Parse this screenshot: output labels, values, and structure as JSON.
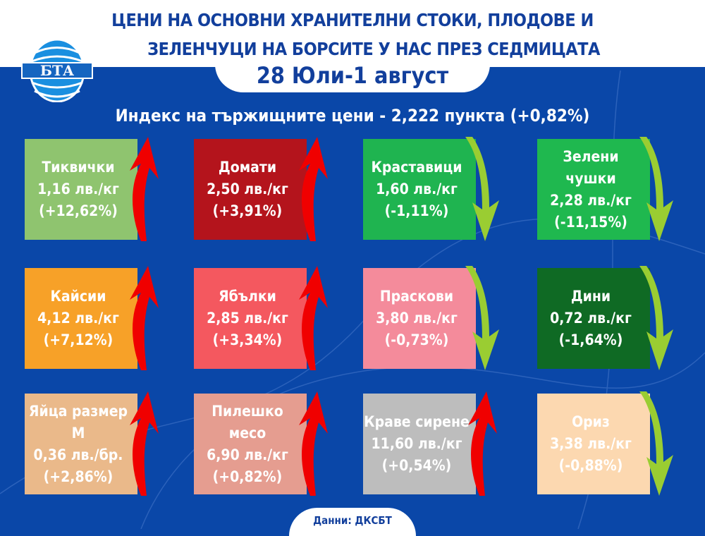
{
  "header": {
    "title_line1": "ЦЕНИ НА ОСНОВНИ ХРАНИТЕЛНИ СТОКИ, ПЛОДОВЕ И",
    "title_line2": "ЗЕЛЕНЧУЦИ НА БОРСИТЕ У НАС ПРЕЗ СЕДМИЦАТА",
    "date": "28 Юли-1 август",
    "logo_text": "БТА"
  },
  "index": "Индекс на тържищните цени - 2,222 пункта (+0,82%)",
  "colors": {
    "background": "#0a47a8",
    "up": "#f00000",
    "down": "#9acd32"
  },
  "cards": [
    {
      "name": "Тиквички",
      "price": "1,16 лв./кг",
      "change": "(+12,62%)",
      "trend": "up",
      "color": "#8fc46f",
      "icon": "zucchini-icon"
    },
    {
      "name": "Домати",
      "price": "2,50 лв./кг",
      "change": "(+3,91%)",
      "trend": "up",
      "color": "#b4141c",
      "icon": "tomato-icon"
    },
    {
      "name": "Краставици",
      "price": "1,60 лв./кг",
      "change": "(-1,11%)",
      "trend": "down",
      "color": "#1fb450",
      "icon": "cucumber-icon"
    },
    {
      "name": "Зелени чушки",
      "price": "2,28 лв./кг",
      "change": "(-11,15%)",
      "trend": "down",
      "color": "#1fb84f",
      "icon": "pepper-icon"
    },
    {
      "name": "Кайсии",
      "price": "4,12 лв./кг",
      "change": "(+7,12%)",
      "trend": "up",
      "color": "#f7a128",
      "icon": "apricot-icon"
    },
    {
      "name": "Ябълки",
      "price": "2,85 лв./кг",
      "change": "(+3,34%)",
      "trend": "up",
      "color": "#f4585f",
      "icon": "apple-icon"
    },
    {
      "name": "Праскови",
      "price": "3,80 лв./кг",
      "change": "(-0,73%)",
      "trend": "down",
      "color": "#f48b9b",
      "icon": "peach-icon"
    },
    {
      "name": "Дини",
      "price": "0,72 лв./кг",
      "change": "(-1,64%)",
      "trend": "down",
      "color": "#0f6a24",
      "icon": "watermelon-icon"
    },
    {
      "name": "Яйца размер М",
      "price": "0,36 лв./бр.",
      "change": "(+2,86%)",
      "trend": "up",
      "color": "#eab98a",
      "icon": "egg-icon"
    },
    {
      "name": "Пилешко месо",
      "price": "6,90 лв./кг",
      "change": "(+0,82%)",
      "trend": "up",
      "color": "#e59d90",
      "icon": "chicken-icon"
    },
    {
      "name": "Краве сирене",
      "price": "11,60 лв./кг",
      "change": "(+0,54%)",
      "trend": "up",
      "color": "#bdbdbd",
      "icon": "cheese-icon"
    },
    {
      "name": "Ориз",
      "price": "3,38 лв./кг",
      "change": "(-0,88%)",
      "trend": "down",
      "color": "#fcd8b0",
      "icon": "rice-icon"
    }
  ],
  "footer": "Данни: ДКСБТ"
}
